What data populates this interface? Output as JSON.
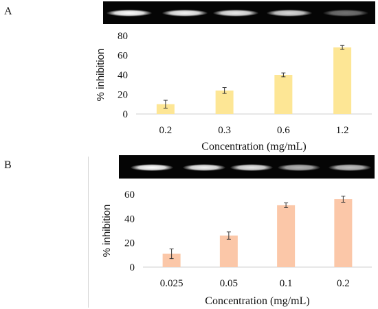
{
  "panels": {
    "a": {
      "label": "A"
    },
    "b": {
      "label": "B"
    }
  },
  "gels": {
    "a": {
      "band_intensity": [
        1.0,
        0.96,
        0.92,
        0.85,
        0.45
      ]
    },
    "b": {
      "band_intensity": [
        1.0,
        0.95,
        0.9,
        0.7,
        0.75
      ]
    }
  },
  "chart_data": [
    {
      "type": "bar",
      "categories": [
        "0.2",
        "0.3",
        "0.6",
        "1.2"
      ],
      "values": [
        10,
        24,
        40,
        68
      ],
      "errors": [
        4,
        3,
        2,
        2
      ],
      "xlabel": "Concentration (mg/mL)",
      "ylabel": "% inhibition",
      "ylim": [
        0,
        80
      ],
      "yticks": [
        0,
        20,
        40,
        60,
        80
      ],
      "color": "#fde695",
      "grid": false,
      "legend": "none"
    },
    {
      "type": "bar",
      "categories": [
        "0.025",
        "0.05",
        "0.1",
        "0.2"
      ],
      "values": [
        11,
        26,
        51,
        56
      ],
      "errors": [
        4,
        3,
        2,
        2.5
      ],
      "xlabel": "Concentration (mg/mL)",
      "ylabel": "% inhibition",
      "ylim": [
        0,
        60
      ],
      "yticks": [
        0,
        20,
        40,
        60
      ],
      "color": "#fbc7a8",
      "grid": false,
      "legend": "none"
    }
  ]
}
